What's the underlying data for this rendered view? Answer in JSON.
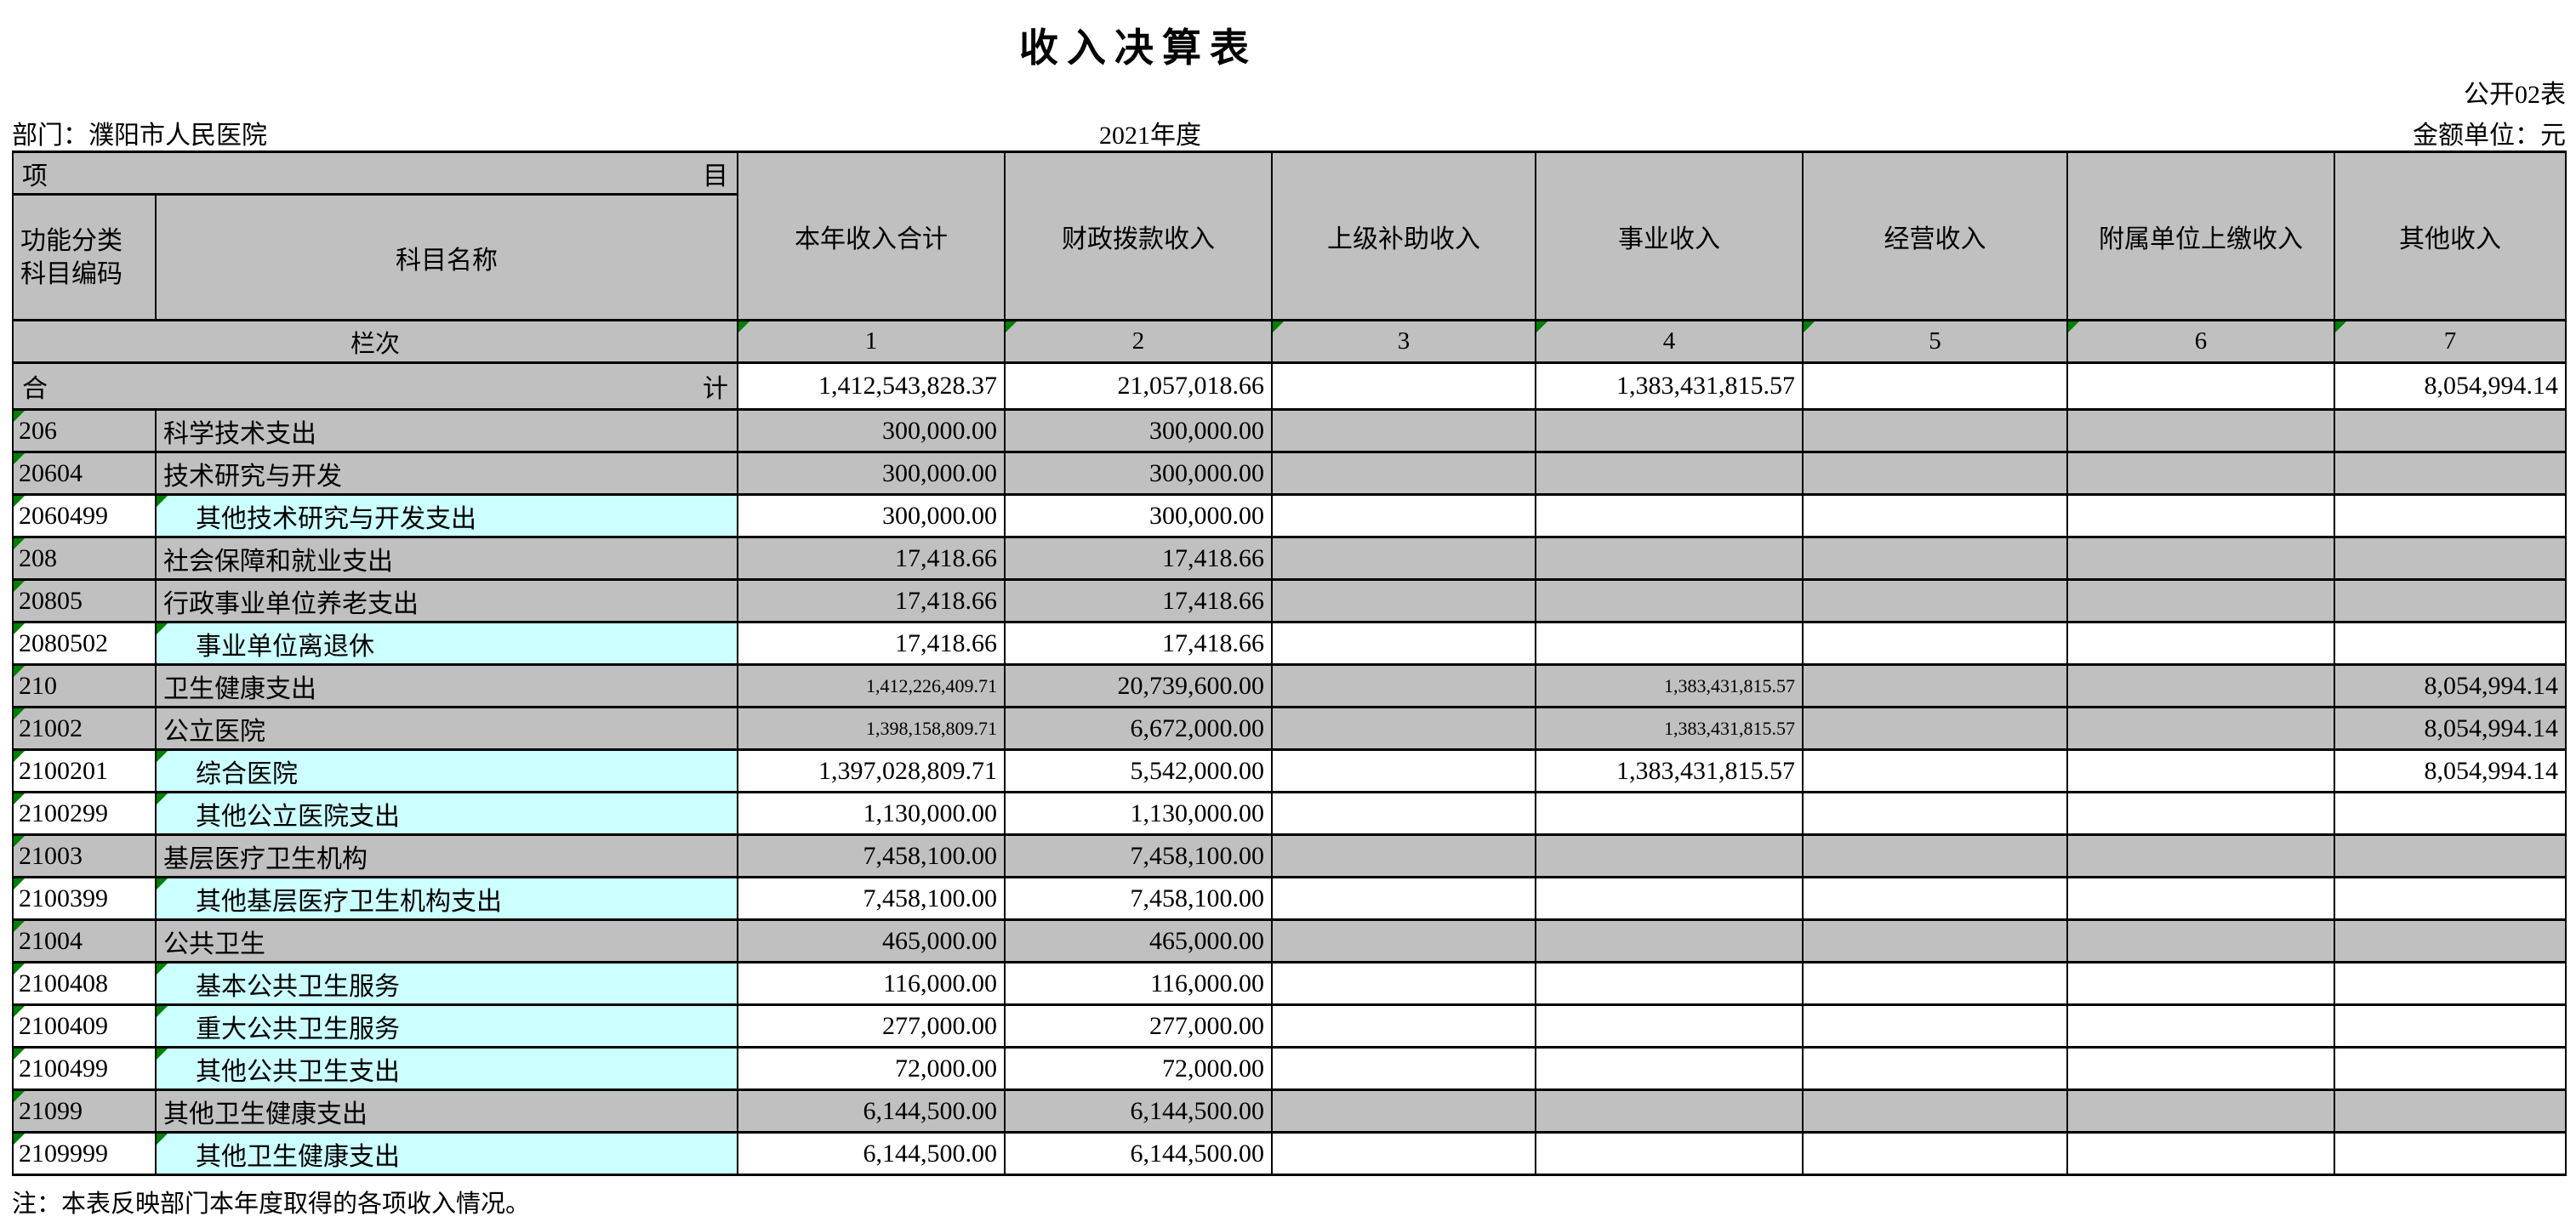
{
  "page": {
    "title": "收入决算表",
    "form_code": "公开02表",
    "department": "部门：濮阳市人民医院",
    "year": "2021年度",
    "unit": "金额单位：元",
    "note": "注：本表反映部门本年度取得的各项收入情况。"
  },
  "header": {
    "project_left": "项",
    "project_right": "目",
    "code_line1": "功能分类",
    "code_line2": "科目编码",
    "name_label": "科目名称",
    "row_index_label": "栏次",
    "columns": [
      {
        "label": "本年收入合计",
        "num": "1"
      },
      {
        "label": "财政拨款收入",
        "num": "2"
      },
      {
        "label": "上级补助收入",
        "num": "3"
      },
      {
        "label": "事业收入",
        "num": "4"
      },
      {
        "label": "经营收入",
        "num": "5"
      },
      {
        "label": "附属单位上缴收入",
        "num": "6"
      },
      {
        "label": "其他收入",
        "num": "7"
      }
    ]
  },
  "total_row": {
    "label_left": "合",
    "label_right": "计",
    "values": [
      "1,412,543,828.37",
      "21,057,018.66",
      "",
      "1,383,431,815.57",
      "",
      "",
      "8,054,994.14"
    ]
  },
  "rows": [
    {
      "code": "206",
      "name": "科学技术支出",
      "type": "section",
      "values": [
        "300,000.00",
        "300,000.00",
        "",
        "",
        "",
        "",
        ""
      ]
    },
    {
      "code": "20604",
      "name": "技术研究与开发",
      "type": "section",
      "values": [
        "300,000.00",
        "300,000.00",
        "",
        "",
        "",
        "",
        ""
      ]
    },
    {
      "code": "2060499",
      "name": "其他技术研究与开发支出",
      "type": "detail",
      "values": [
        "300,000.00",
        "300,000.00",
        "",
        "",
        "",
        "",
        ""
      ]
    },
    {
      "code": "208",
      "name": "社会保障和就业支出",
      "type": "section",
      "values": [
        "17,418.66",
        "17,418.66",
        "",
        "",
        "",
        "",
        ""
      ]
    },
    {
      "code": "20805",
      "name": "行政事业单位养老支出",
      "type": "section",
      "values": [
        "17,418.66",
        "17,418.66",
        "",
        "",
        "",
        "",
        ""
      ]
    },
    {
      "code": "2080502",
      "name": "事业单位离退休",
      "type": "detail",
      "values": [
        "17,418.66",
        "17,418.66",
        "",
        "",
        "",
        "",
        ""
      ]
    },
    {
      "code": "210",
      "name": "卫生健康支出",
      "type": "section",
      "values": [
        "1,412,226,409.71",
        "20,739,600.00",
        "",
        "1,383,431,815.57",
        "",
        "",
        "8,054,994.14"
      ],
      "small_cols": [
        0,
        3
      ]
    },
    {
      "code": "21002",
      "name": "公立医院",
      "type": "section",
      "values": [
        "1,398,158,809.71",
        "6,672,000.00",
        "",
        "1,383,431,815.57",
        "",
        "",
        "8,054,994.14"
      ],
      "small_cols": [
        0,
        3
      ]
    },
    {
      "code": "2100201",
      "name": "综合医院",
      "type": "detail",
      "values": [
        "1,397,028,809.71",
        "5,542,000.00",
        "",
        "1,383,431,815.57",
        "",
        "",
        "8,054,994.14"
      ]
    },
    {
      "code": "2100299",
      "name": "其他公立医院支出",
      "type": "detail",
      "values": [
        "1,130,000.00",
        "1,130,000.00",
        "",
        "",
        "",
        "",
        ""
      ]
    },
    {
      "code": "21003",
      "name": "基层医疗卫生机构",
      "type": "section",
      "values": [
        "7,458,100.00",
        "7,458,100.00",
        "",
        "",
        "",
        "",
        ""
      ]
    },
    {
      "code": "2100399",
      "name": "其他基层医疗卫生机构支出",
      "type": "detail",
      "values": [
        "7,458,100.00",
        "7,458,100.00",
        "",
        "",
        "",
        "",
        ""
      ]
    },
    {
      "code": "21004",
      "name": "公共卫生",
      "type": "section",
      "values": [
        "465,000.00",
        "465,000.00",
        "",
        "",
        "",
        "",
        ""
      ]
    },
    {
      "code": "2100408",
      "name": "基本公共卫生服务",
      "type": "detail",
      "values": [
        "116,000.00",
        "116,000.00",
        "",
        "",
        "",
        "",
        ""
      ]
    },
    {
      "code": "2100409",
      "name": "重大公共卫生服务",
      "type": "detail",
      "values": [
        "277,000.00",
        "277,000.00",
        "",
        "",
        "",
        "",
        ""
      ]
    },
    {
      "code": "2100499",
      "name": "其他公共卫生支出",
      "type": "detail",
      "values": [
        "72,000.00",
        "72,000.00",
        "",
        "",
        "",
        "",
        ""
      ]
    },
    {
      "code": "21099",
      "name": "其他卫生健康支出",
      "type": "section",
      "values": [
        "6,144,500.00",
        "6,144,500.00",
        "",
        "",
        "",
        "",
        ""
      ]
    },
    {
      "code": "2109999",
      "name": "其他卫生健康支出",
      "type": "detail",
      "values": [
        "6,144,500.00",
        "6,144,500.00",
        "",
        "",
        "",
        "",
        ""
      ]
    }
  ],
  "colors": {
    "section_row_bg": "#c0c0c0",
    "detail_name_bg": "#ccffff",
    "corner_triangle": "#008000",
    "grid_line": "#000000"
  }
}
